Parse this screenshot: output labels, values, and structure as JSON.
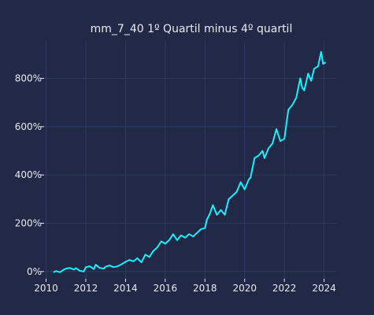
{
  "chart_data": {
    "type": "line",
    "title": "mm_7_40 1º Quartil minus 4º quartil",
    "xlabel": "",
    "ylabel": "",
    "x_ticks": [
      2010,
      2012,
      2014,
      2016,
      2018,
      2020,
      2022,
      2024
    ],
    "y_ticks": [
      0,
      200,
      400,
      600,
      800
    ],
    "y_tick_labels": [
      "0%",
      "200%",
      "400%",
      "600%",
      "800%"
    ],
    "xlim": [
      2009.9,
      2024.65
    ],
    "ylim": [
      -30,
      955
    ],
    "grid": true,
    "colors": {
      "background": "#212946",
      "line": "#18f0ff",
      "grid": "#2e3b63",
      "text": "#e8eaf2"
    },
    "series": [
      {
        "x": [
          2010.4,
          2010.5,
          2010.7,
          2010.9,
          2011.0,
          2011.2,
          2011.4,
          2011.5,
          2011.7,
          2011.9,
          2012.0,
          2012.2,
          2012.4,
          2012.5,
          2012.7,
          2012.9,
          2013.0,
          2013.2,
          2013.4,
          2013.6,
          2013.8,
          2014.0,
          2014.2,
          2014.4,
          2014.6,
          2014.8,
          2015.0,
          2015.2,
          2015.4,
          2015.6,
          2015.8,
          2016.0,
          2016.2,
          2016.4,
          2016.6,
          2016.8,
          2017.0,
          2017.2,
          2017.4,
          2017.6,
          2017.8,
          2018.0,
          2018.1,
          2018.25,
          2018.4,
          2018.6,
          2018.8,
          2019.0,
          2019.2,
          2019.4,
          2019.6,
          2019.8,
          2020.0,
          2020.2,
          2020.3,
          2020.5,
          2020.7,
          2020.9,
          2021.0,
          2021.2,
          2021.4,
          2021.6,
          2021.8,
          2022.0,
          2022.2,
          2022.4,
          2022.6,
          2022.8,
          2022.9,
          2023.0,
          2023.2,
          2023.35,
          2023.5,
          2023.7,
          2023.85,
          2023.95,
          2024.05
        ],
        "y": [
          -2,
          2,
          -3,
          8,
          12,
          15,
          8,
          14,
          3,
          0,
          18,
          22,
          10,
          28,
          15,
          12,
          20,
          25,
          18,
          22,
          30,
          40,
          48,
          42,
          55,
          38,
          70,
          60,
          85,
          100,
          125,
          115,
          130,
          155,
          130,
          150,
          140,
          155,
          145,
          160,
          175,
          180,
          215,
          240,
          275,
          235,
          255,
          235,
          300,
          315,
          330,
          370,
          340,
          380,
          390,
          470,
          480,
          500,
          470,
          510,
          530,
          590,
          540,
          550,
          670,
          690,
          720,
          800,
          760,
          750,
          820,
          790,
          840,
          850,
          910,
          860,
          865
        ]
      }
    ]
  }
}
